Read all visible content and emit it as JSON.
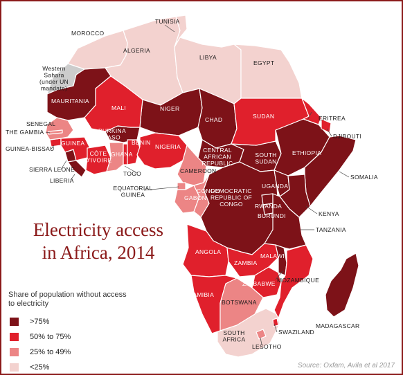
{
  "title_line1": "Electricity access",
  "title_line2": "in Africa, 2014",
  "legend": {
    "title": "Share of population without access to electricity",
    "items": [
      {
        "label": ">75%",
        "color": "#7d1218"
      },
      {
        "label": "50% to 75%",
        "color": "#e0202c"
      },
      {
        "label": "25% to 49%",
        "color": "#ec8585"
      },
      {
        "label": "<25%",
        "color": "#f3d2cf"
      }
    ]
  },
  "source": "Source: Oxfam, Avila et al 2017",
  "labels": {
    "morocco": "MOROCCO",
    "tunisia": "TUNISIA",
    "algeria": "ALGERIA",
    "libya": "LIBYA",
    "egypt": "EGYPT",
    "western_sahara": [
      "Western",
      "Sahara",
      "(under UN",
      "mandate)"
    ],
    "mauritania": "MAURITANIA",
    "mali": "MALI",
    "niger": "NIGER",
    "chad": "CHAD",
    "sudan": "SUDAN",
    "eritrea": "ERITREA",
    "djibouti": "DJIBOUTI",
    "senegal": "SENEGAL",
    "the_gambia": "THE GAMBIA",
    "guinea_bissau": "GUINEA-BISSAU",
    "guinea": "GUINEA",
    "sierra_leone": "SIERRA LEONE",
    "liberia": "LIBERIA",
    "burkina_faso": [
      "BURKINA",
      "FASO"
    ],
    "cote_divoire": [
      "CÔTE",
      "D'IVOIRE"
    ],
    "ghana": "GHANA",
    "togo": "TOGO",
    "benin": "BENIN",
    "nigeria": "NIGERIA",
    "cameroon": "CAMEROON",
    "car": [
      "CENTRAL",
      "AFRICAN",
      "REPUBLIC"
    ],
    "south_sudan": [
      "SOUTH",
      "SUDAN"
    ],
    "ethiopia": "ETHIOPIA",
    "somalia": "SOMALIA",
    "equatorial_guinea": [
      "EQUATORIAL",
      "GUINEA"
    ],
    "gabon": "GABON",
    "congo": "CONGO",
    "drc": [
      "DEMOCRATIC",
      "REPUBLIC OF",
      "CONGO"
    ],
    "uganda": "UGANDA",
    "kenya": "KENYA",
    "rwanda": "RWANDA",
    "burundi": "BURUNDI",
    "tanzania": "TANZANIA",
    "angola": "ANGOLA",
    "zambia": "ZAMBIA",
    "malawi": "MALAWI",
    "mozambique": "MOZAMBIQUE",
    "zimbabwe": "ZIMBABWE",
    "namibia": "NAMIBIA",
    "botswana": "BOTSWANA",
    "madagascar": "MADAGASCAR",
    "swaziland": "SWAZILAND",
    "south_africa": [
      "SOUTH",
      "AFRICA"
    ],
    "lesotho": "LESOTHO"
  }
}
